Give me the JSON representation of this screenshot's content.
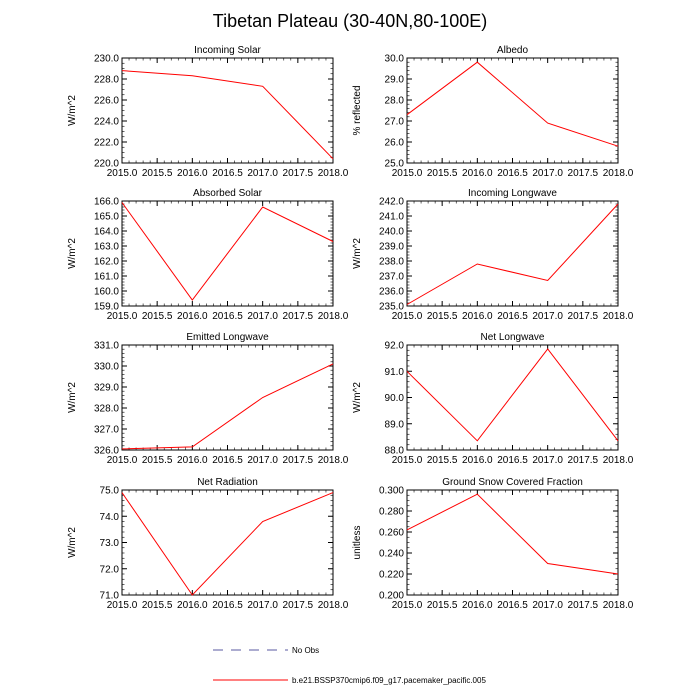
{
  "title": "Tibetan Plateau (30-40N,80-100E)",
  "legend": {
    "obs_label": "No Obs",
    "obs_color": "#5a5aa0",
    "model_label": "b.e21.BSSP370cmip6.f09_g17.pacemaker_pacific.005",
    "model_color": "#ff0000"
  },
  "chart_data": [
    {
      "type": "line",
      "title": "Incoming Solar",
      "ylabel": "W/m^2",
      "x": [
        2015.0,
        2016.0,
        2017.0,
        2018.0
      ],
      "values": [
        228.8,
        228.3,
        227.3,
        220.4
      ],
      "xlim": [
        2015.0,
        2018.0
      ],
      "xticks": [
        2015.0,
        2015.5,
        2016.0,
        2016.5,
        2017.0,
        2017.5,
        2018.0
      ],
      "xtick_labels": [
        "2015.0",
        "2015.5",
        "2016.0",
        "2016.5",
        "2017.0",
        "2017.5",
        "2018.0"
      ],
      "ylim": [
        220.0,
        230.0
      ],
      "yticks": [
        220.0,
        222.0,
        224.0,
        226.0,
        228.0,
        230.0
      ],
      "ytick_labels": [
        "220.0",
        "222.0",
        "224.0",
        "226.0",
        "228.0",
        "230.0"
      ],
      "yminor": 0.5
    },
    {
      "type": "line",
      "title": "Albedo",
      "ylabel": "% reflected",
      "x": [
        2015.0,
        2016.0,
        2017.0,
        2018.0
      ],
      "values": [
        27.3,
        29.8,
        26.9,
        25.8
      ],
      "xlim": [
        2015.0,
        2018.0
      ],
      "xticks": [
        2015.0,
        2015.5,
        2016.0,
        2016.5,
        2017.0,
        2017.5,
        2018.0
      ],
      "xtick_labels": [
        "2015.0",
        "2015.5",
        "2016.0",
        "2016.5",
        "2017.0",
        "2017.5",
        "2018.0"
      ],
      "ylim": [
        25.0,
        30.0
      ],
      "yticks": [
        25.0,
        26.0,
        27.0,
        28.0,
        29.0,
        30.0
      ],
      "ytick_labels": [
        "25.0",
        "26.0",
        "27.0",
        "28.0",
        "29.0",
        "30.0"
      ],
      "yminor": 0.2
    },
    {
      "type": "line",
      "title": "Absorbed Solar",
      "ylabel": "W/m^2",
      "x": [
        2015.0,
        2016.0,
        2017.0,
        2018.0
      ],
      "values": [
        165.9,
        159.4,
        165.6,
        163.3
      ],
      "xlim": [
        2015.0,
        2018.0
      ],
      "xticks": [
        2015.0,
        2015.5,
        2016.0,
        2016.5,
        2017.0,
        2017.5,
        2018.0
      ],
      "xtick_labels": [
        "2015.0",
        "2015.5",
        "2016.0",
        "2016.5",
        "2017.0",
        "2017.5",
        "2018.0"
      ],
      "ylim": [
        159.0,
        166.0
      ],
      "yticks": [
        159.0,
        160.0,
        161.0,
        162.0,
        163.0,
        164.0,
        165.0,
        166.0
      ],
      "ytick_labels": [
        "159.0",
        "160.0",
        "161.0",
        "162.0",
        "163.0",
        "164.0",
        "165.0",
        "166.0"
      ],
      "yminor": 0.2
    },
    {
      "type": "line",
      "title": "Incoming Longwave",
      "ylabel": "W/m^2",
      "x": [
        2015.0,
        2016.0,
        2017.0,
        2018.0
      ],
      "values": [
        235.1,
        237.8,
        236.7,
        241.8
      ],
      "xlim": [
        2015.0,
        2018.0
      ],
      "xticks": [
        2015.0,
        2015.5,
        2016.0,
        2016.5,
        2017.0,
        2017.5,
        2018.0
      ],
      "xtick_labels": [
        "2015.0",
        "2015.5",
        "2016.0",
        "2016.5",
        "2017.0",
        "2017.5",
        "2018.0"
      ],
      "ylim": [
        235.0,
        242.0
      ],
      "yticks": [
        235.0,
        236.0,
        237.0,
        238.0,
        239.0,
        240.0,
        241.0,
        242.0
      ],
      "ytick_labels": [
        "235.0",
        "236.0",
        "237.0",
        "238.0",
        "239.0",
        "240.0",
        "241.0",
        "242.0"
      ],
      "yminor": 0.2
    },
    {
      "type": "line",
      "title": "Emitted Longwave",
      "ylabel": "W/m^2",
      "x": [
        2015.0,
        2016.0,
        2017.0,
        2018.0
      ],
      "values": [
        326.05,
        326.15,
        328.5,
        330.1
      ],
      "xlim": [
        2015.0,
        2018.0
      ],
      "xticks": [
        2015.0,
        2015.5,
        2016.0,
        2016.5,
        2017.0,
        2017.5,
        2018.0
      ],
      "xtick_labels": [
        "2015.0",
        "2015.5",
        "2016.0",
        "2016.5",
        "2017.0",
        "2017.5",
        "2018.0"
      ],
      "ylim": [
        326.0,
        331.0
      ],
      "yticks": [
        326.0,
        327.0,
        328.0,
        329.0,
        330.0,
        331.0
      ],
      "ytick_labels": [
        "326.0",
        "327.0",
        "328.0",
        "329.0",
        "330.0",
        "331.0"
      ],
      "yminor": 0.2
    },
    {
      "type": "line",
      "title": "Net Longwave",
      "ylabel": "W/m^2",
      "x": [
        2015.0,
        2016.0,
        2017.0,
        2018.0
      ],
      "values": [
        91.0,
        88.35,
        91.85,
        88.35
      ],
      "xlim": [
        2015.0,
        2018.0
      ],
      "xticks": [
        2015.0,
        2015.5,
        2016.0,
        2016.5,
        2017.0,
        2017.5,
        2018.0
      ],
      "xtick_labels": [
        "2015.0",
        "2015.5",
        "2016.0",
        "2016.5",
        "2017.0",
        "2017.5",
        "2018.0"
      ],
      "ylim": [
        88.0,
        92.0
      ],
      "yticks": [
        88.0,
        89.0,
        90.0,
        91.0,
        92.0
      ],
      "ytick_labels": [
        "88.0",
        "89.0",
        "90.0",
        "91.0",
        "92.0"
      ],
      "yminor": 0.2
    },
    {
      "type": "line",
      "title": "Net Radiation",
      "ylabel": "W/m^2",
      "x": [
        2015.0,
        2016.0,
        2017.0,
        2018.0
      ],
      "values": [
        74.9,
        71.0,
        73.8,
        74.9
      ],
      "xlim": [
        2015.0,
        2018.0
      ],
      "xticks": [
        2015.0,
        2015.5,
        2016.0,
        2016.5,
        2017.0,
        2017.5,
        2018.0
      ],
      "xtick_labels": [
        "2015.0",
        "2015.5",
        "2016.0",
        "2016.5",
        "2017.0",
        "2017.5",
        "2018.0"
      ],
      "ylim": [
        71.0,
        75.0
      ],
      "yticks": [
        71.0,
        72.0,
        73.0,
        74.0,
        75.0
      ],
      "ytick_labels": [
        "71.0",
        "72.0",
        "73.0",
        "74.0",
        "75.0"
      ],
      "yminor": 0.2
    },
    {
      "type": "line",
      "title": "Ground Snow Covered Fraction",
      "ylabel": "unitless",
      "x": [
        2015.0,
        2016.0,
        2017.0,
        2018.0
      ],
      "values": [
        0.262,
        0.296,
        0.23,
        0.22
      ],
      "xlim": [
        2015.0,
        2018.0
      ],
      "xticks": [
        2015.0,
        2015.5,
        2016.0,
        2016.5,
        2017.0,
        2017.5,
        2018.0
      ],
      "xtick_labels": [
        "2015.0",
        "2015.5",
        "2016.0",
        "2016.5",
        "2017.0",
        "2017.5",
        "2018.0"
      ],
      "ylim": [
        0.2,
        0.3
      ],
      "yticks": [
        0.2,
        0.22,
        0.24,
        0.26,
        0.28,
        0.3
      ],
      "ytick_labels": [
        "0.200",
        "0.220",
        "0.240",
        "0.260",
        "0.280",
        "0.300"
      ],
      "yminor": 0.005
    }
  ]
}
